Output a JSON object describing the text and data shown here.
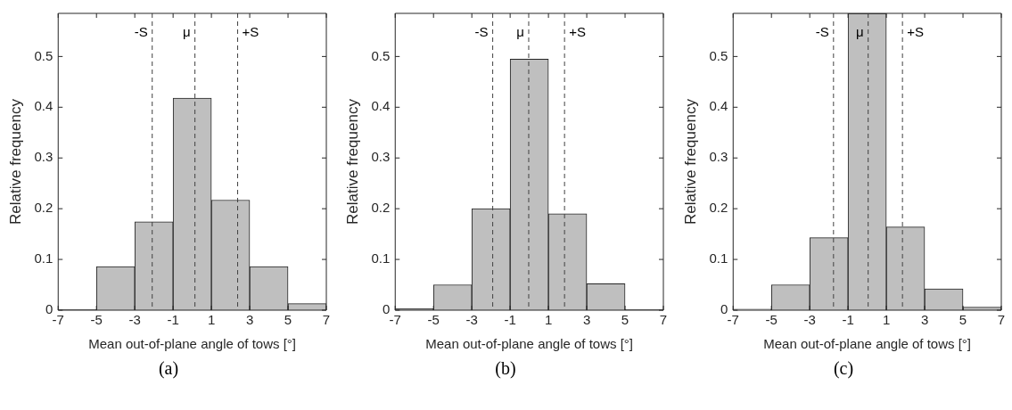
{
  "chart_data": [
    {
      "type": "histogram",
      "xlabel": "Mean out-of-plane angle of tows [°]",
      "ylabel": "Relative frequency",
      "annotations": [
        "(a)"
      ],
      "bins": [
        -7,
        -5,
        -3,
        -1,
        1,
        3,
        5,
        7
      ],
      "values": [
        0.001,
        0.086,
        0.174,
        0.418,
        0.217,
        0.086,
        0.013
      ],
      "color": "#bfbfbf",
      "xlim": [
        -7,
        7
      ],
      "xticks": [
        -7,
        -5,
        -3,
        -1,
        1,
        3,
        5,
        7
      ],
      "ylim": [
        0,
        0.585
      ],
      "yticks": [
        0,
        0.1,
        0.2,
        0.3,
        0.4,
        0.5
      ],
      "ref_lines": [
        {
          "axis": "x",
          "value": -2.09,
          "label": "-S",
          "line_style": "dashed"
        },
        {
          "axis": "x",
          "value": 0.14,
          "label": "μ",
          "line_style": "dashed"
        },
        {
          "axis": "x",
          "value": 2.37,
          "label": "+S",
          "line_style": "dashed"
        }
      ]
    },
    {
      "type": "histogram",
      "xlabel": "Mean out-of-plane angle of tows [°]",
      "ylabel": "Relative frequency",
      "annotations": [
        "(b)"
      ],
      "bins": [
        -7,
        -5,
        -3,
        -1,
        1,
        3,
        5,
        7
      ],
      "values": [
        0.003,
        0.05,
        0.2,
        0.495,
        0.19,
        0.052,
        0.001
      ],
      "color": "#bfbfbf",
      "xlim": [
        -7,
        7
      ],
      "xticks": [
        -7,
        -5,
        -3,
        -1,
        1,
        3,
        5,
        7
      ],
      "ylim": [
        0,
        0.585
      ],
      "yticks": [
        0,
        0.1,
        0.2,
        0.3,
        0.4,
        0.5
      ],
      "ref_lines": [
        {
          "axis": "x",
          "value": -1.91,
          "label": "-S",
          "line_style": "dashed"
        },
        {
          "axis": "x",
          "value": -0.03,
          "label": "μ",
          "line_style": "dashed"
        },
        {
          "axis": "x",
          "value": 1.84,
          "label": "+S",
          "line_style": "dashed"
        }
      ]
    },
    {
      "type": "histogram",
      "xlabel": "Mean out-of-plane angle of tows [°]",
      "ylabel": "Relative frequency",
      "annotations": [
        "(c)"
      ],
      "bins": [
        -7,
        -5,
        -3,
        -1,
        1,
        3,
        5,
        7
      ],
      "values": [
        0.002,
        0.05,
        0.143,
        0.585,
        0.164,
        0.042,
        0.006
      ],
      "color": "#bfbfbf",
      "xlim": [
        -7,
        7
      ],
      "xticks": [
        -7,
        -5,
        -3,
        -1,
        1,
        3,
        5,
        7
      ],
      "ylim": [
        0,
        0.585
      ],
      "yticks": [
        0,
        0.1,
        0.2,
        0.3,
        0.4,
        0.5
      ],
      "ref_lines": [
        {
          "axis": "x",
          "value": -1.76,
          "label": "-S",
          "line_style": "dashed"
        },
        {
          "axis": "x",
          "value": 0.05,
          "label": "μ",
          "line_style": "dashed"
        },
        {
          "axis": "x",
          "value": 1.84,
          "label": "+S",
          "line_style": "dashed"
        }
      ]
    }
  ]
}
